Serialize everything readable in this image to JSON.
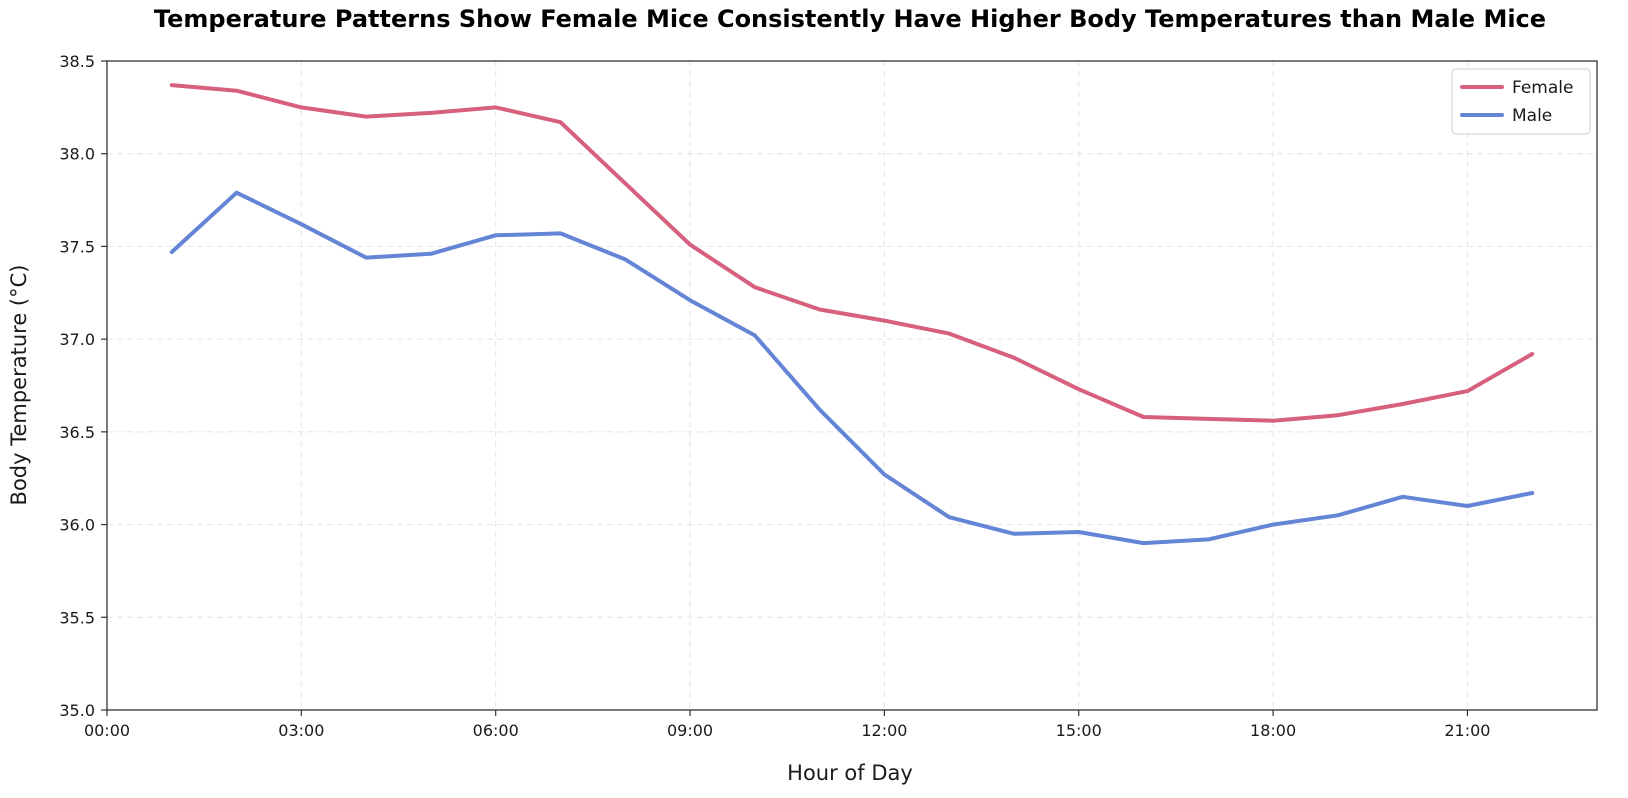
{
  "chart_data": {
    "type": "line",
    "title": "Temperature Patterns Show Female Mice Consistently Have Higher Body Temperatures than Male Mice",
    "xlabel": "Hour of Day",
    "ylabel": "Body Temperature (°C)",
    "xlim": [
      0,
      23
    ],
    "ylim": [
      35.0,
      38.5
    ],
    "x_ticks": [
      {
        "value": 0,
        "label": "00:00"
      },
      {
        "value": 3,
        "label": "03:00"
      },
      {
        "value": 6,
        "label": "06:00"
      },
      {
        "value": 9,
        "label": "09:00"
      },
      {
        "value": 12,
        "label": "12:00"
      },
      {
        "value": 15,
        "label": "15:00"
      },
      {
        "value": 18,
        "label": "18:00"
      },
      {
        "value": 21,
        "label": "21:00"
      }
    ],
    "y_ticks": [
      {
        "value": 35.0,
        "label": "35.0"
      },
      {
        "value": 35.5,
        "label": "35.5"
      },
      {
        "value": 36.0,
        "label": "36.0"
      },
      {
        "value": 36.5,
        "label": "36.5"
      },
      {
        "value": 37.0,
        "label": "37.0"
      },
      {
        "value": 37.5,
        "label": "37.5"
      },
      {
        "value": 38.0,
        "label": "38.0"
      },
      {
        "value": 38.5,
        "label": "38.5"
      }
    ],
    "grid": true,
    "legend_position": "top-right",
    "x": [
      1,
      2,
      3,
      4,
      5,
      6,
      7,
      8,
      9,
      10,
      11,
      12,
      13,
      14,
      15,
      16,
      17,
      18,
      19,
      20,
      21,
      22
    ],
    "series": [
      {
        "name": "Female",
        "color": "#d6607e",
        "values": [
          38.37,
          38.34,
          38.25,
          38.2,
          38.22,
          38.25,
          38.17,
          37.84,
          37.51,
          37.28,
          37.16,
          37.1,
          37.03,
          36.9,
          36.73,
          36.58,
          36.57,
          36.56,
          36.59,
          36.65,
          36.72,
          36.92
        ]
      },
      {
        "name": "Male",
        "color": "#6484d6",
        "values": [
          37.47,
          37.79,
          37.62,
          37.44,
          37.46,
          37.56,
          37.57,
          37.43,
          37.21,
          37.02,
          36.62,
          36.27,
          36.04,
          35.95,
          35.96,
          35.9,
          35.92,
          36.0,
          36.05,
          36.15,
          36.1,
          36.17
        ]
      }
    ]
  }
}
